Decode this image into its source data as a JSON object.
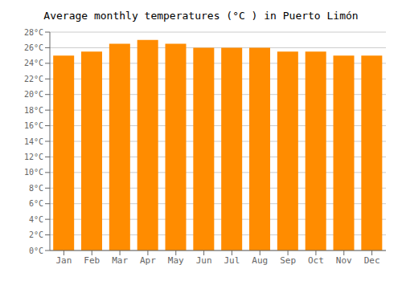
{
  "chart_data": {
    "type": "bar",
    "title": "Average monthly temperatures (°C ) in Puerto Limón",
    "categories": [
      "Jan",
      "Feb",
      "Mar",
      "Apr",
      "May",
      "Jun",
      "Jul",
      "Aug",
      "Sep",
      "Oct",
      "Nov",
      "Dec"
    ],
    "values": [
      25.0,
      25.5,
      26.5,
      27.0,
      26.5,
      26.0,
      26.0,
      26.0,
      25.5,
      25.5,
      25.0,
      25.0
    ],
    "color": "#FF8C00",
    "ylim": [
      0,
      28
    ],
    "yticks": [
      {
        "value": 0,
        "label": "0°C"
      },
      {
        "value": 2,
        "label": "2°C"
      },
      {
        "value": 4,
        "label": "4°C"
      },
      {
        "value": 6,
        "label": "6°C"
      },
      {
        "value": 8,
        "label": "8°C"
      },
      {
        "value": 10,
        "label": "10°C"
      },
      {
        "value": 12,
        "label": "12°C"
      },
      {
        "value": 14,
        "label": "14°C"
      },
      {
        "value": 16,
        "label": "16°C"
      },
      {
        "value": 18,
        "label": "18°C"
      },
      {
        "value": 20,
        "label": "20°C"
      },
      {
        "value": 22,
        "label": "22°C"
      },
      {
        "value": 24,
        "label": "24°C"
      },
      {
        "value": 26,
        "label": "26°C"
      },
      {
        "value": 28,
        "label": "28°C"
      }
    ],
    "grid": true
  }
}
